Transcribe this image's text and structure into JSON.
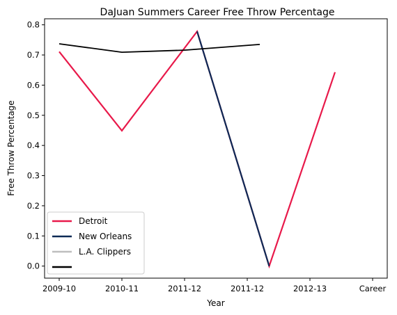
{
  "chart_data": {
    "type": "line",
    "title": "DaJuan Summers Career Free Throw Percentage",
    "xlabel": "Year",
    "ylabel": "Free Throw Percentage",
    "categories": [
      "2009-10",
      "2010-11",
      "2011-12",
      "2011-12",
      "2012-13",
      "Career"
    ],
    "ylim": [
      -0.04,
      0.82
    ],
    "yticks": [
      0.0,
      0.1,
      0.2,
      0.3,
      0.4,
      0.5,
      0.6,
      0.7,
      0.8
    ],
    "ytick_labels": [
      "0.0",
      "0.1",
      "0.2",
      "0.3",
      "0.4",
      "0.5",
      "0.6",
      "0.7",
      "0.8"
    ],
    "grid": false,
    "legend_position": "lower-left",
    "series": [
      {
        "name": "Detroit",
        "color": "#e8194a",
        "points": [
          [
            0,
            0.711
          ],
          [
            1,
            0.449
          ],
          [
            2.2,
            0.778
          ],
          [
            3.35,
            0.0
          ],
          [
            4.4,
            0.643
          ]
        ]
      },
      {
        "name": "New Orleans",
        "color": "#0c2a56",
        "points": [
          [
            2.2,
            0.778
          ],
          [
            3.35,
            0.0
          ]
        ]
      },
      {
        "name": "L.A. Clippers",
        "color": "#bebebe",
        "points": []
      },
      {
        "name": "",
        "color": "#000000",
        "points": [
          [
            0,
            0.737
          ],
          [
            1,
            0.709
          ],
          [
            2.0,
            0.716
          ],
          [
            3.2,
            0.735
          ]
        ]
      }
    ]
  }
}
